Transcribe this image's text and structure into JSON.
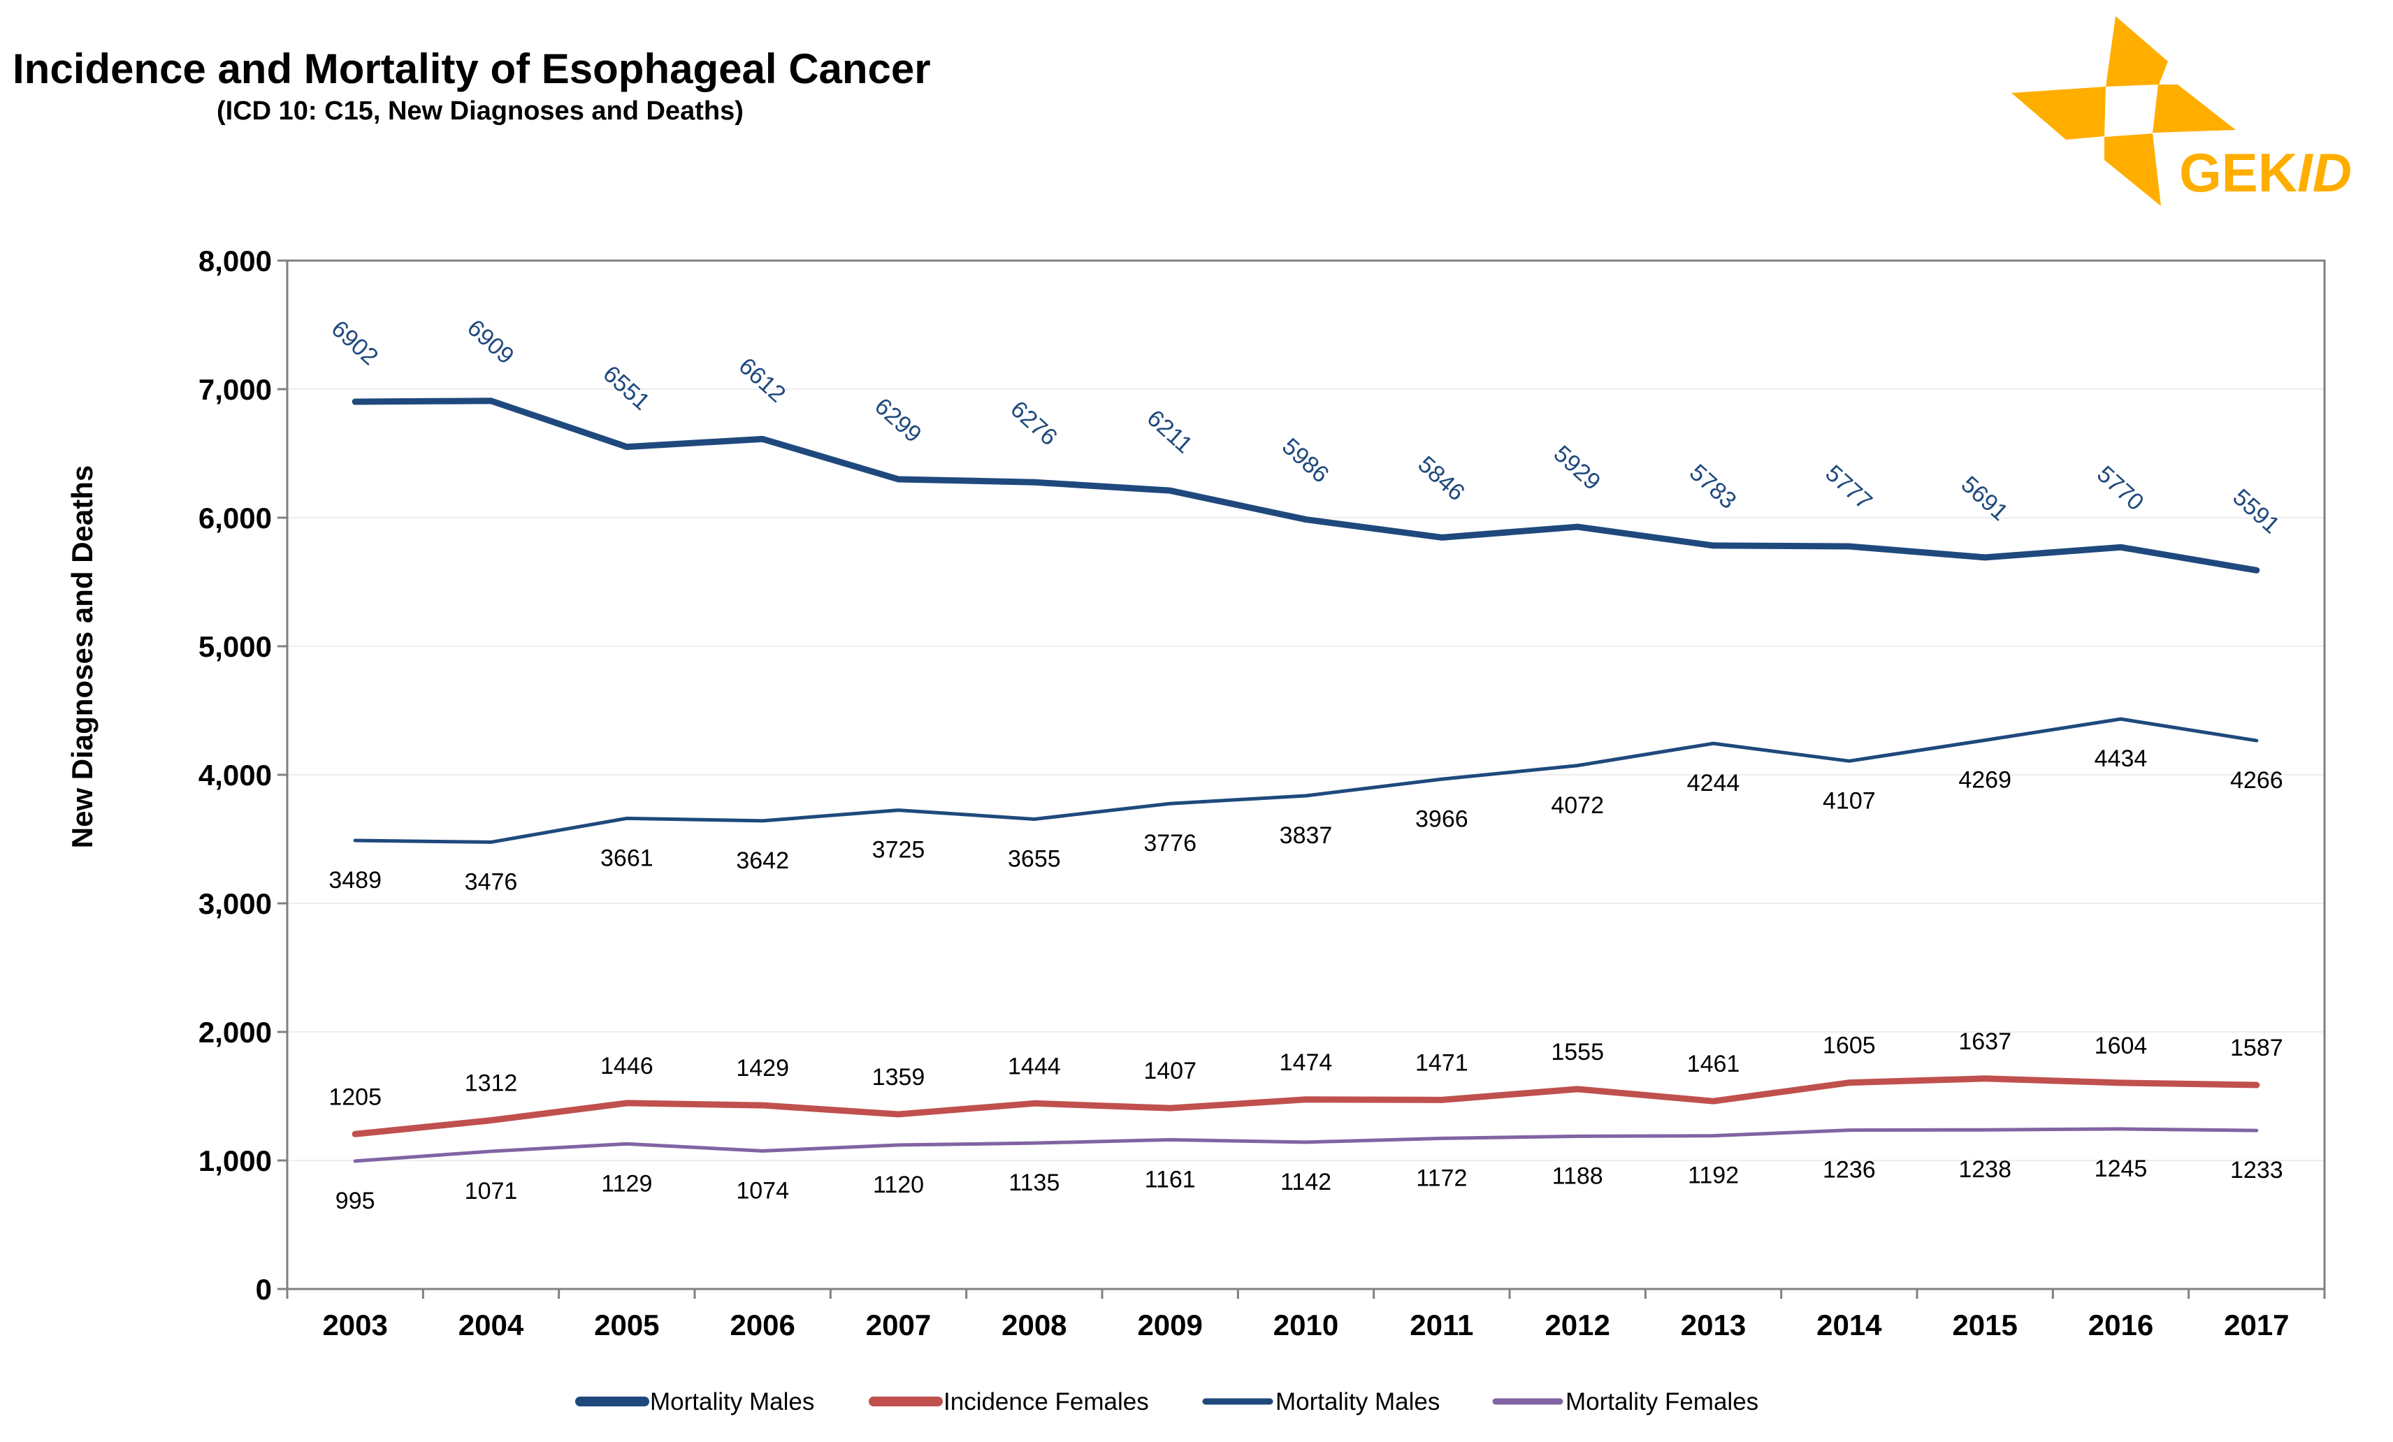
{
  "header": {
    "title": "Incidence and Mortality of Esophageal Cancer",
    "subtitle": "(ICD 10: C15, New Diagnoses and Deaths)",
    "logo_text": "GEKID",
    "logo_color": "#FFAE00"
  },
  "chart_data": {
    "type": "line",
    "title": "Incidence and Mortality of Esophageal Cancer",
    "subtitle": "(ICD 10: C15, New Diagnoses and Deaths)",
    "xlabel": "",
    "ylabel": "New Diagnoses and Deaths",
    "ylim": [
      0,
      8000
    ],
    "yticks": [
      "0",
      "1,000",
      "2,000",
      "3,000",
      "4,000",
      "5,000",
      "6,000",
      "7,000",
      "8,000"
    ],
    "yticks_values": [
      0,
      1000,
      2000,
      3000,
      4000,
      5000,
      6000,
      7000,
      8000
    ],
    "grid": true,
    "legend_position": "bottom",
    "categories": [
      "2003",
      "2004",
      "2005",
      "2006",
      "2007",
      "2008",
      "2009",
      "2010",
      "2011",
      "2012",
      "2013",
      "2014",
      "2015",
      "2016",
      "2017"
    ],
    "series": [
      {
        "name": "Mortality Males",
        "color": "#1F497D",
        "style": "thick",
        "label_position": "above-rotated",
        "values": [
          6902,
          6909,
          6551,
          6612,
          6299,
          6276,
          6211,
          5986,
          5846,
          5929,
          5783,
          5777,
          5691,
          5770,
          5591
        ]
      },
      {
        "name": "Incidence Females",
        "color": "#C0504D",
        "style": "thick",
        "label_position": "above",
        "values": [
          1205,
          1312,
          1446,
          1429,
          1359,
          1444,
          1407,
          1474,
          1471,
          1555,
          1461,
          1605,
          1637,
          1604,
          1587
        ]
      },
      {
        "name": "Mortality Males",
        "color": "#1F497D",
        "style": "thin",
        "label_position": "below",
        "values": [
          3489,
          3476,
          3661,
          3642,
          3725,
          3655,
          3776,
          3837,
          3966,
          4072,
          4244,
          4107,
          4269,
          4434,
          4266
        ]
      },
      {
        "name": "Mortality Females",
        "color": "#8064A2",
        "style": "thin",
        "label_position": "below",
        "values": [
          995,
          1071,
          1129,
          1074,
          1120,
          1135,
          1161,
          1142,
          1172,
          1188,
          1192,
          1236,
          1238,
          1245,
          1233
        ]
      }
    ]
  }
}
